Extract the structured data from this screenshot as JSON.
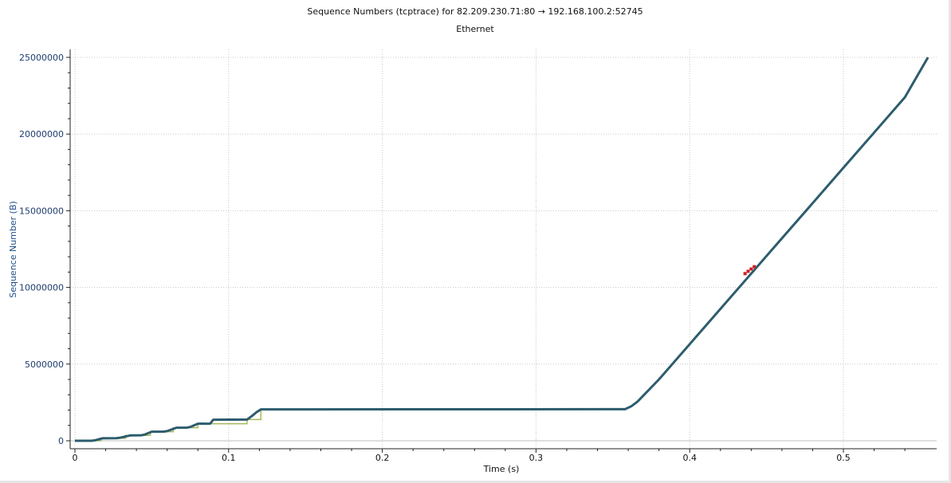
{
  "chart_data": {
    "type": "scatter",
    "title": "Sequence Numbers (tcptrace) for 82.209.230.71:80 → 192.168.100.2:52745",
    "subtitle": "Ethernet",
    "xlabel": "Time (s)",
    "ylabel": "Sequence Number (B)",
    "xlim": [
      0,
      0.556
    ],
    "ylim": [
      -500000,
      25300000
    ],
    "x_ticks": [
      "0",
      "0.1",
      "0.2",
      "0.3",
      "0.4",
      "0.5"
    ],
    "x_tick_values": [
      0,
      0.1,
      0.2,
      0.3,
      0.4,
      0.5
    ],
    "y_ticks": [
      "0",
      "5000000",
      "10000000",
      "15000000",
      "20000000",
      "25000000"
    ],
    "y_tick_values": [
      0,
      5000000,
      10000000,
      15000000,
      20000000,
      25000000
    ],
    "grid": true,
    "colors": {
      "data": "#2d5c6e",
      "window": "#a8b85a",
      "retransmit": "#cc2222",
      "axis_text": "#1e4f8a"
    },
    "series": [
      {
        "values_x": [
          0.0,
          0.011,
          0.013,
          0.018,
          0.027,
          0.029,
          0.036,
          0.043,
          0.045,
          0.05,
          0.058,
          0.06,
          0.066,
          0.073,
          0.075,
          0.08,
          0.088,
          0.09,
          0.112,
          0.115,
          0.118,
          0.121,
          0.358,
          0.362,
          0.366,
          0.38,
          0.4,
          0.42,
          0.44,
          0.46,
          0.48,
          0.5,
          0.52,
          0.54,
          0.555
        ],
        "values_y": [
          0,
          0,
          30000,
          160000,
          170000,
          190000,
          350000,
          360000,
          390000,
          590000,
          600000,
          630000,
          850000,
          860000,
          900000,
          1110000,
          1120000,
          1370000,
          1380000,
          1600000,
          1850000,
          2050000,
          2060000,
          2250000,
          2550000,
          4000000,
          6300000,
          8600000,
          10900000,
          13200000,
          15500000,
          17800000,
          20100000,
          22400000,
          25000000
        ]
      },
      {
        "values_x": [
          0.0,
          0.017,
          0.017,
          0.033,
          0.033,
          0.049,
          0.049,
          0.064,
          0.064,
          0.08,
          0.08,
          0.112,
          0.112,
          0.121,
          0.121,
          0.358
        ],
        "values_y": [
          0,
          0,
          160000,
          160000,
          350000,
          350000,
          590000,
          590000,
          850000,
          850000,
          1110000,
          1110000,
          1380000,
          1380000,
          2050000,
          2050000
        ]
      },
      {
        "values_x": [
          0.436,
          0.438,
          0.44,
          0.442
        ],
        "values_y": [
          10900000,
          11050000,
          11200000,
          11350000
        ]
      }
    ]
  }
}
